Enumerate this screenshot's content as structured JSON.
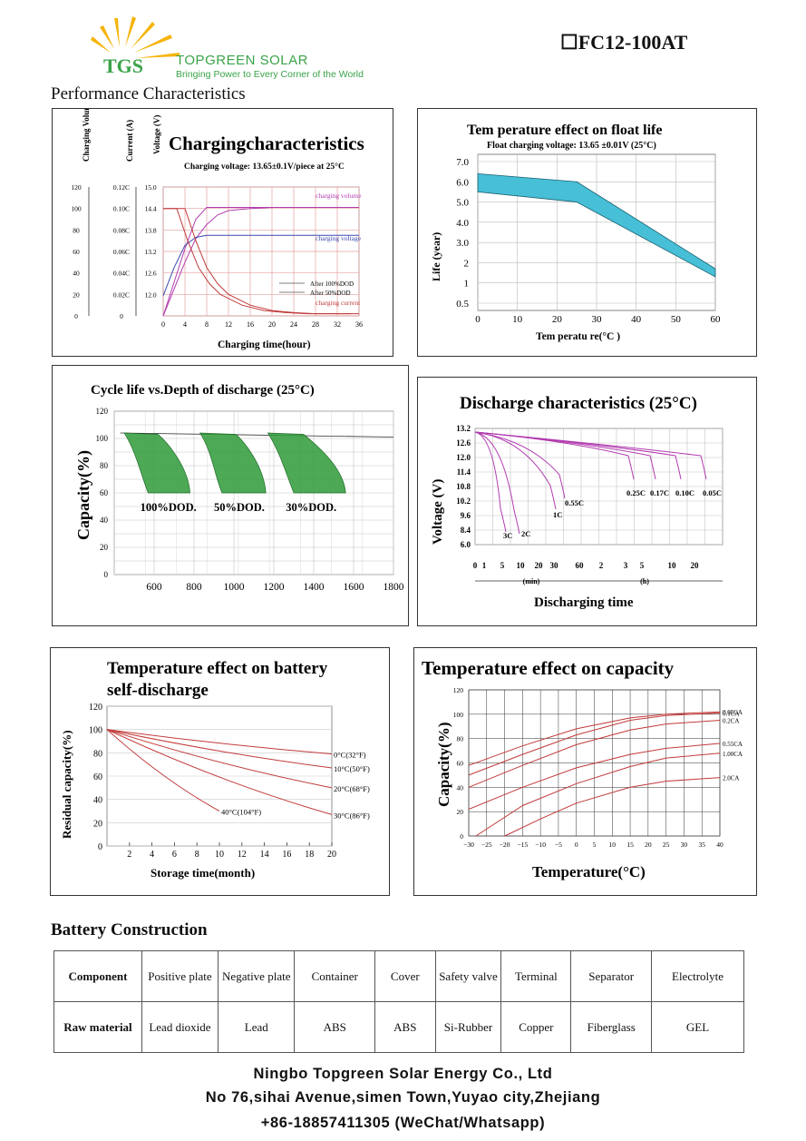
{
  "brand": {
    "logo_text": "TGS",
    "name": "TOPGREEN SOLAR",
    "slogan": "Bringing Power to Every Corner of the World"
  },
  "model": "☐FC12-100AT",
  "performance_title": "Performance Characteristics",
  "chart_data": [
    {
      "type": "line",
      "title": "Chargingcharacteristics",
      "subtitle": "Charging voltage: 13.65±0.1V/piece at 25°C",
      "ylabels": [
        "Charging Volume (%)",
        "Current (A)",
        "Voltage (V)"
      ],
      "volume_ticks": [
        "120",
        "100",
        "80",
        "60",
        "40",
        "20",
        "0"
      ],
      "current_ticks": [
        "0.12C",
        "0.10C",
        "0.08C",
        "0.06C",
        "0.04C",
        "0.02C",
        "0"
      ],
      "voltage_ticks": [
        "15.0",
        "14.4",
        "13.8",
        "13.2",
        "12.6",
        "12.0"
      ],
      "x_ticks": [
        "0",
        "4",
        "8",
        "12",
        "16",
        "20",
        "24",
        "28",
        "32",
        "36"
      ],
      "xlabel": "Charging time(hour)",
      "xlim": [
        0,
        36
      ],
      "series": [
        {
          "name": "charging volume",
          "color": "#b23cb0",
          "x": [
            0,
            2,
            4,
            6,
            8,
            10,
            12,
            16,
            20,
            24,
            28,
            32,
            36
          ],
          "y": [
            0,
            25,
            50,
            72,
            85,
            94,
            98,
            100,
            101,
            101,
            101,
            101,
            101
          ]
        },
        {
          "name": "charging voltage",
          "color": "#3a4ab0",
          "x": [
            0,
            2,
            4,
            6,
            8,
            12,
            16,
            20,
            24,
            28,
            32,
            36
          ],
          "y": [
            12.3,
            13.0,
            13.55,
            13.75,
            13.8,
            13.8,
            13.8,
            13.8,
            13.8,
            13.8,
            13.8,
            13.8
          ]
        },
        {
          "name": "charging current",
          "color": "#c23a3a",
          "x": [
            0,
            4,
            6,
            8,
            10,
            12,
            16,
            20,
            24,
            28,
            32,
            36
          ],
          "y": [
            0.1,
            0.1,
            0.07,
            0.045,
            0.03,
            0.02,
            0.01,
            0.005,
            0.003,
            0.002,
            0.002,
            0.002
          ]
        }
      ],
      "legend": [
        "After 100%DOD",
        "After 50%DOD"
      ]
    },
    {
      "type": "area",
      "title": "Tem perature effect on float life",
      "subtitle": "Float charging voltage: 13.65 ±0.01V (25°C)",
      "xlabel": "Tem peratu re(°C )",
      "ylabel": "Life (year)",
      "x_ticks": [
        "0",
        "10",
        "20",
        "30",
        "40",
        "50",
        "60"
      ],
      "y_ticks": [
        "7.0",
        "6.0",
        "5.0",
        "4.0",
        "3.0",
        "2",
        "1",
        "0.5"
      ],
      "xlim": [
        0,
        60
      ],
      "upper": {
        "x": [
          0,
          25,
          60
        ],
        "y": [
          6.4,
          6.0,
          1.7
        ]
      },
      "lower": {
        "x": [
          0,
          25,
          60
        ],
        "y": [
          5.5,
          5.0,
          1.3
        ]
      },
      "color": "#47bfd6"
    },
    {
      "type": "area",
      "title": "Cycle life vs.Depth of discharge (25°C)",
      "ylabel": "Capacity(%)",
      "x_ticks": [
        "600",
        "800",
        "1000",
        "1200",
        "1400",
        "1600",
        "1800"
      ],
      "y_ticks": [
        "120",
        "100",
        "80",
        "60",
        "40",
        "20",
        "0"
      ],
      "xlim": [
        400,
        1800
      ],
      "ylim": [
        0,
        120
      ],
      "series_labels": [
        "100%DOD.",
        "50%DOD.",
        "30%DOD."
      ],
      "color": "#2f9a3a"
    },
    {
      "type": "line",
      "title": "Discharge characteristics (25°C)",
      "ylabel": "Voltage (V)",
      "xlabel": "Discharging time",
      "y_ticks": [
        "13.2",
        "12.6",
        "12.0",
        "11.4",
        "10.8",
        "10.2",
        "9.6",
        "8.4",
        "6.0"
      ],
      "x_ticks": [
        "0",
        "1",
        "5",
        "10",
        "20",
        "30",
        "60",
        "2",
        "3",
        "5",
        "10",
        "20"
      ],
      "x_units": [
        "(min)",
        "(h)"
      ],
      "curve_labels": [
        "3C",
        "2C",
        "1C",
        "0.55C",
        "0.25C",
        "0.17C",
        "0.10C",
        "0.05C"
      ],
      "color": "#b23cb0"
    },
    {
      "type": "line",
      "title": "Temperature effect on battery self-discharge",
      "ylabel": "Residual capacity(%)",
      "xlabel": "Storage time(month)",
      "x_ticks": [
        "2",
        "4",
        "6",
        "8",
        "10",
        "12",
        "14",
        "16",
        "18",
        "20"
      ],
      "y_ticks": [
        "120",
        "100",
        "80",
        "60",
        "40",
        "20",
        "0"
      ],
      "xlim": [
        0,
        20
      ],
      "ylim": [
        0,
        120
      ],
      "series": [
        {
          "name": "0°C(32°F)",
          "x": [
            0,
            20
          ],
          "y": [
            100,
            79
          ]
        },
        {
          "name": "10°C(50°F)",
          "x": [
            0,
            20
          ],
          "y": [
            100,
            67
          ]
        },
        {
          "name": "20°C(68°F)",
          "x": [
            0,
            20
          ],
          "y": [
            100,
            50
          ]
        },
        {
          "name": "30°C(86°F)",
          "x": [
            0,
            20
          ],
          "y": [
            100,
            27
          ]
        },
        {
          "name": "40°C(104°F)",
          "x": [
            0,
            10
          ],
          "y": [
            100,
            30
          ]
        }
      ],
      "color": "#c23a3a"
    },
    {
      "type": "line",
      "title": "Temperature effect on capacity",
      "ylabel": "Capacity(%)",
      "xlabel": "Temperature(°C)",
      "x_ticks": [
        "−30",
        "−25",
        "−20",
        "−15",
        "−10",
        "−5",
        "0",
        "5",
        "10",
        "15",
        "20",
        "25",
        "30",
        "35",
        "40"
      ],
      "y_ticks": [
        "120",
        "100",
        "80",
        "60",
        "40",
        "20",
        "0"
      ],
      "xlim": [
        -30,
        40
      ],
      "ylim": [
        0,
        120
      ],
      "series": [
        {
          "name": "0.05CA",
          "x": [
            -30,
            -15,
            0,
            15,
            25,
            40
          ],
          "y": [
            58,
            74,
            88,
            97,
            100,
            102
          ]
        },
        {
          "name": "0.1CA",
          "x": [
            -30,
            -15,
            0,
            15,
            25,
            40
          ],
          "y": [
            50,
            67,
            83,
            95,
            99,
            101
          ]
        },
        {
          "name": "0.2CA",
          "x": [
            -30,
            -15,
            0,
            15,
            25,
            40
          ],
          "y": [
            40,
            58,
            75,
            87,
            92,
            95
          ]
        },
        {
          "name": "0.55CA",
          "x": [
            -30,
            -15,
            0,
            15,
            25,
            40
          ],
          "y": [
            22,
            40,
            56,
            67,
            72,
            76
          ]
        },
        {
          "name": "1.00CA",
          "x": [
            -28,
            -15,
            0,
            15,
            25,
            40
          ],
          "y": [
            0,
            25,
            43,
            57,
            64,
            68
          ]
        },
        {
          "name": "2.0CA",
          "x": [
            -20,
            -10,
            0,
            15,
            25,
            40
          ],
          "y": [
            0,
            14,
            27,
            40,
            45,
            48
          ]
        }
      ],
      "color": "#c23a3a"
    }
  ],
  "construction": {
    "title": "Battery Construction",
    "header": [
      "Component",
      "Positive plate",
      "Negative plate",
      "Container",
      "Cover",
      "Safety valve",
      "Terminal",
      "Separator",
      "Electrolyte"
    ],
    "row": [
      "Raw material",
      "Lead dioxide",
      "Lead",
      "ABS",
      "ABS",
      "Si-Rubber",
      "Copper",
      "Fiberglass",
      "GEL"
    ]
  },
  "footer": {
    "company": "Ningbo Topgreen Solar Energy Co.,  Ltd",
    "address": "No 76,sihai Avenue,simen Town,Yuyao city,Zhejiang",
    "phone": "+86-18857411305 (WeChat/Whatsapp)"
  }
}
